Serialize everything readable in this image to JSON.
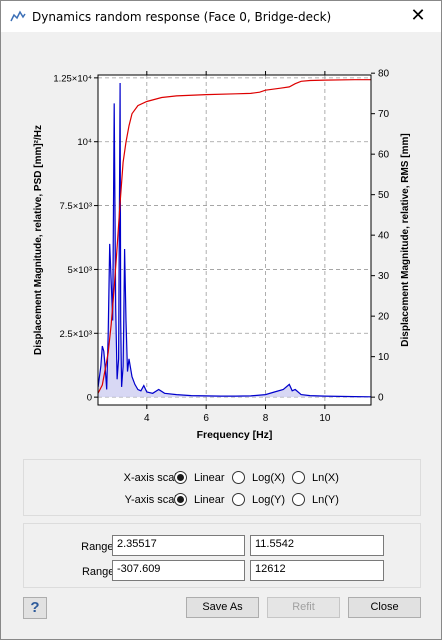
{
  "window": {
    "title": "Dynamics random response  (Face 0, Bridge-deck)",
    "close_glyph": "✕"
  },
  "chart_data": {
    "type": "line",
    "xlabel": "Frequency [Hz]",
    "ylabel_left": "Displacement Magnitude, relative, PSD [mm]²/Hz",
    "ylabel_right": "Displacement Magnitude, relative, RMS [mm]",
    "xlim": [
      2.35517,
      11.5542
    ],
    "ylim_left": [
      -307.609,
      12612
    ],
    "ylim_right": [
      -1.94,
      79.55
    ],
    "x_ticks": [
      4,
      6,
      8,
      10
    ],
    "x_tick_labels": [
      "4",
      "6",
      "8",
      "10"
    ],
    "y_left_ticks": [
      0,
      2500,
      5000,
      7500,
      10000,
      12500
    ],
    "y_left_tick_labels": [
      "0",
      "2.5×10³",
      "5×10³",
      "7.5×10³",
      "10⁴",
      "1.25×10⁴"
    ],
    "y_right_ticks": [
      0,
      10,
      20,
      30,
      40,
      50,
      60,
      70,
      80
    ],
    "y_right_tick_labels": [
      "0",
      "10",
      "20",
      "30",
      "40",
      "50",
      "60",
      "70",
      "80"
    ],
    "grid": true,
    "series": [
      {
        "axis": "left",
        "color": "#0000cc",
        "fill": "#c8c8f0",
        "x": [
          2.36,
          2.45,
          2.5,
          2.55,
          2.6,
          2.65,
          2.7,
          2.75,
          2.8,
          2.85,
          2.9,
          2.95,
          3.0,
          3.05,
          3.1,
          3.12,
          3.15,
          3.2,
          3.22,
          3.25,
          3.3,
          3.35,
          3.4,
          3.5,
          3.6,
          3.7,
          3.8,
          3.9,
          4.0,
          4.2,
          4.4,
          4.6,
          5.0,
          5.5,
          6.0,
          6.5,
          7.0,
          7.5,
          8.0,
          8.3,
          8.6,
          8.8,
          8.9,
          9.0,
          9.2,
          9.5,
          10.0,
          10.5,
          11.0,
          11.55
        ],
        "y": [
          400,
          1200,
          2000,
          1800,
          1100,
          300,
          2500,
          6000,
          4500,
          3000,
          11500,
          3500,
          700,
          1500,
          12300,
          3000,
          400,
          1200,
          2800,
          5800,
          3000,
          1000,
          1500,
          800,
          500,
          300,
          250,
          450,
          200,
          150,
          300,
          150,
          100,
          60,
          50,
          40,
          40,
          50,
          100,
          200,
          300,
          500,
          250,
          300,
          100,
          60,
          40,
          30,
          20,
          15
        ]
      },
      {
        "axis": "right",
        "color": "#dd0000",
        "x": [
          2.36,
          2.5,
          2.6,
          2.7,
          2.8,
          2.9,
          3.0,
          3.1,
          3.2,
          3.3,
          3.4,
          3.5,
          3.7,
          4.0,
          4.5,
          5.0,
          6.0,
          7.0,
          7.5,
          7.8,
          8.0,
          8.5,
          8.8,
          9.0,
          9.2,
          9.5,
          10.0,
          11.0,
          11.55
        ],
        "y": [
          1,
          3,
          7,
          11,
          18,
          27,
          37,
          48,
          58,
          63,
          67,
          70,
          72,
          73,
          74,
          74.4,
          74.7,
          74.9,
          75.0,
          75.3,
          75.8,
          76.3,
          76.6,
          77.4,
          78.0,
          78.2,
          78.3,
          78.4,
          78.4
        ]
      }
    ]
  },
  "controls": {
    "x_axis_label": "X-axis scale:",
    "y_axis_label": "Y-axis scale:",
    "options": [
      "Linear",
      "Log(X)",
      "Ln(X)"
    ],
    "options_y": [
      "Linear",
      "Log(Y)",
      "Ln(Y)"
    ],
    "x_selected": "Linear",
    "y_selected": "Linear"
  },
  "range": {
    "x_label": "Range X:",
    "y_label": "Range Y:",
    "x_min": "2.35517",
    "x_max": "11.5542",
    "y_min": "-307.609",
    "y_max": "12612"
  },
  "buttons": {
    "help": "?",
    "save_as": "Save As",
    "refit": "Refit",
    "close": "Close"
  }
}
